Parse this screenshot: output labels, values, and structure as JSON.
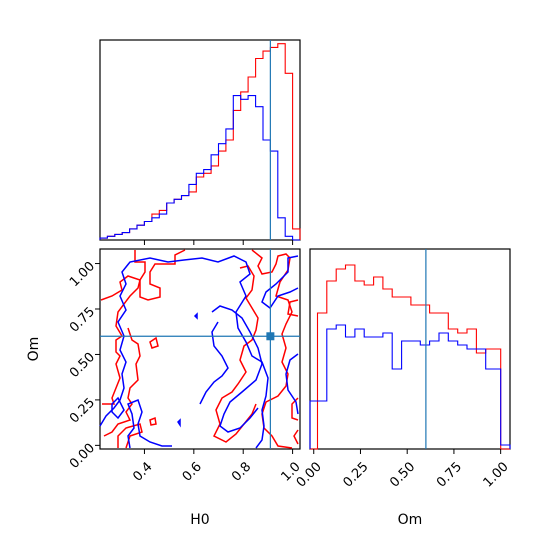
{
  "chart_data": {
    "type": "corner",
    "parameters": [
      "H0",
      "Om"
    ],
    "truths": {
      "H0": 0.91,
      "Om": 0.6
    },
    "truth_color": "#1f77b4",
    "series": [
      {
        "color": "#ff0000"
      },
      {
        "color": "#0000ff"
      }
    ],
    "panels": [
      {
        "id": "hist-H0",
        "type": "histogram",
        "xlabel": "",
        "xlim": [
          0.22,
          1.03
        ],
        "ylim": [
          0,
          54
        ],
        "bin_edges": [
          0.22,
          0.25,
          0.28,
          0.31,
          0.34,
          0.37,
          0.4,
          0.43,
          0.46,
          0.49,
          0.52,
          0.55,
          0.58,
          0.61,
          0.64,
          0.67,
          0.7,
          0.73,
          0.76,
          0.79,
          0.82,
          0.85,
          0.88,
          0.91,
          0.94,
          0.97,
          1.0,
          1.03
        ],
        "counts": [
          [
            0.5,
            1,
            1.5,
            2,
            3,
            4,
            5,
            7,
            8,
            10,
            11,
            12,
            13,
            17,
            18,
            20,
            24,
            27,
            35,
            40,
            44,
            49,
            51,
            52,
            53,
            45,
            3
          ],
          [
            0.5,
            1,
            1.5,
            2,
            3,
            4,
            5,
            6,
            7,
            10,
            11,
            12,
            15,
            18,
            19,
            23,
            26,
            30,
            39,
            38,
            39,
            36,
            27,
            24,
            6,
            1,
            0
          ]
        ]
      },
      {
        "id": "scatter-H0-Om",
        "type": "contour",
        "xlabel": "H0",
        "ylabel": "Om",
        "xlim": [
          0.22,
          1.03
        ],
        "ylim": [
          -0.02,
          1.08
        ],
        "xticks": [
          0.4,
          0.6,
          0.8,
          1.0
        ],
        "xtick_labels": [
          "0.4",
          "0.6",
          "0.8",
          "1.0"
        ],
        "yticks": [
          0.0,
          0.25,
          0.5,
          0.75,
          1.0
        ],
        "ytick_labels": [
          "0.00",
          "0.25",
          "0.50",
          "0.75",
          "1.00"
        ]
      },
      {
        "id": "hist-Om",
        "type": "histogram",
        "xlabel": "Om",
        "xlim": [
          -0.02,
          1.05
        ],
        "ylim": [
          0,
          50
        ],
        "xticks": [
          0.0,
          0.25,
          0.5,
          0.75,
          1.0
        ],
        "xtick_labels": [
          "0.00",
          "0.25",
          "0.50",
          "0.75",
          "1.00"
        ],
        "bin_edges": [
          -0.02,
          0.02,
          0.07,
          0.12,
          0.17,
          0.22,
          0.27,
          0.32,
          0.37,
          0.42,
          0.47,
          0.52,
          0.57,
          0.62,
          0.67,
          0.72,
          0.77,
          0.82,
          0.87,
          0.92,
          0.97,
          1.0,
          1.05
        ],
        "counts": [
          [
            0,
            34,
            42,
            45,
            46,
            42,
            41,
            43,
            40,
            38,
            38,
            36,
            36,
            34,
            34,
            30,
            29,
            30,
            24,
            25,
            25,
            0
          ],
          [
            12,
            12,
            30,
            31,
            28,
            30,
            28,
            28,
            29,
            20,
            27,
            27,
            26,
            27,
            29,
            27,
            26,
            25,
            25,
            20,
            20,
            1
          ]
        ]
      }
    ]
  }
}
